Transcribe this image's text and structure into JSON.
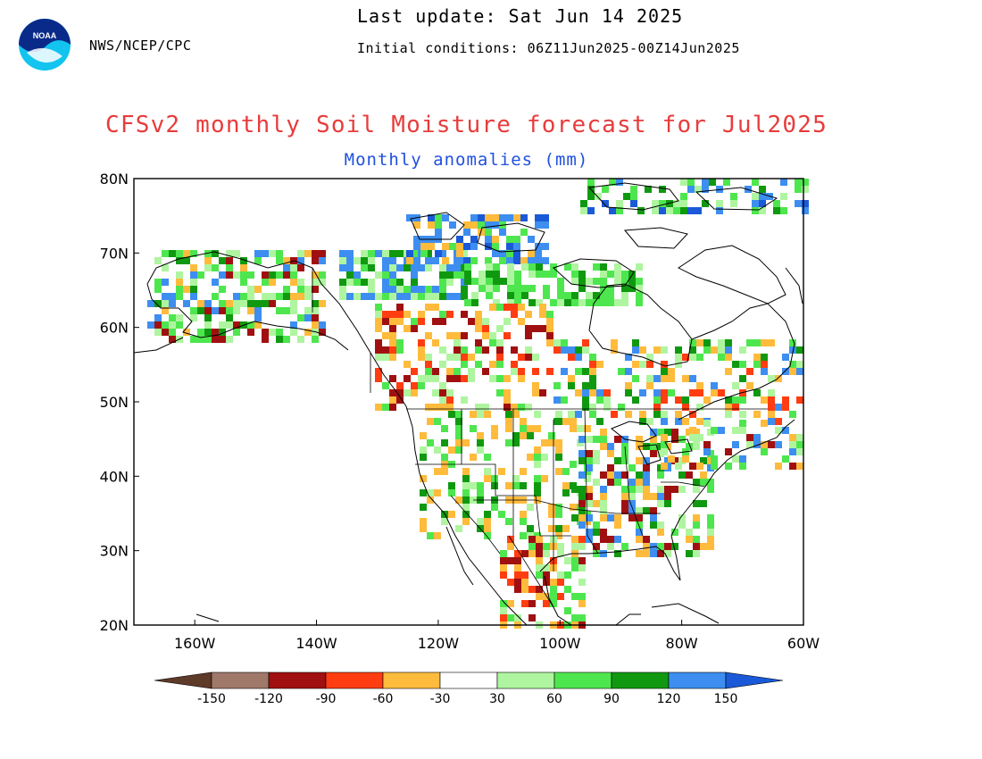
{
  "header": {
    "agency": "NWS/NCEP/CPC",
    "last_update": "Last update: Sat Jun 14 2025",
    "initial_conditions": "Initial conditions: 06Z11Jun2025-00Z14Jun2025",
    "logo_text": "NOAA"
  },
  "map": {
    "title": "CFSv2 monthly Soil Moisture forecast for Jul2025",
    "subtitle": "Monthly anomalies (mm)",
    "lat_labels": [
      "80N",
      "70N",
      "60N",
      "50N",
      "40N",
      "30N",
      "20N"
    ],
    "lon_labels": [
      "160W",
      "140W",
      "120W",
      "100W",
      "80W",
      "60W"
    ],
    "lon_range": [
      -170,
      -60
    ],
    "lat_range": [
      20,
      80
    ]
  },
  "legend": {
    "tick_labels": [
      "-150",
      "-120",
      "-90",
      "-60",
      "-30",
      "30",
      "60",
      "90",
      "120",
      "150"
    ],
    "colors": [
      "#5e3a28",
      "#a0786a",
      "#a01010",
      "#ff3d10",
      "#ffbb3c",
      "#ffffff",
      "#aff5a0",
      "#4ee64e",
      "#109910",
      "#3d8ef0",
      "#1a5ad8"
    ]
  },
  "colors": {
    "title": "#e83c3c",
    "subtitle": "#2050e0",
    "frame": "#000000"
  }
}
